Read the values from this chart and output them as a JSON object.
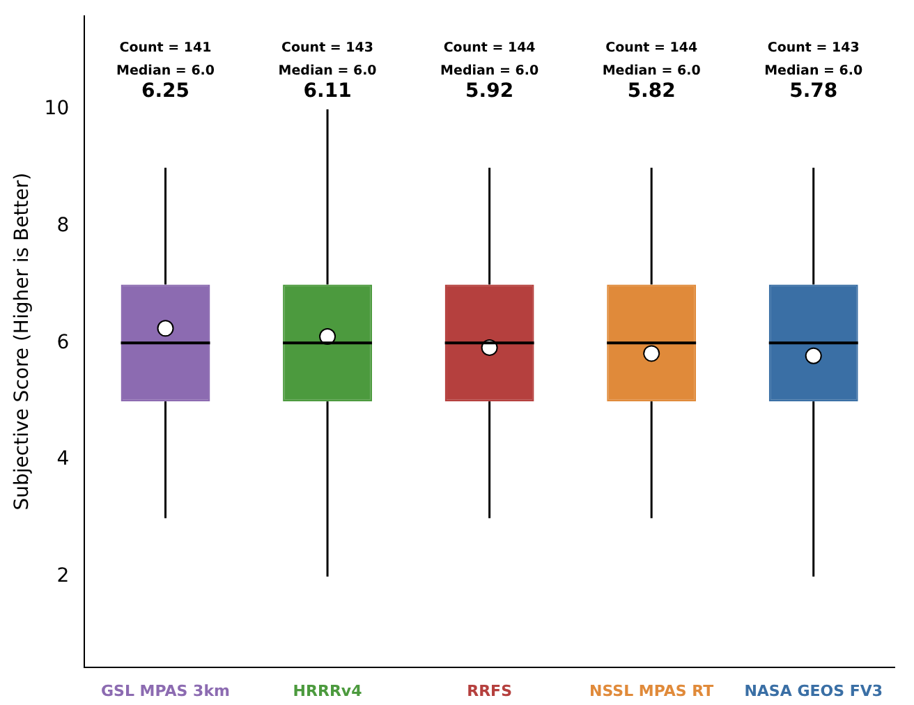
{
  "chart_data": {
    "type": "box",
    "ylabel": "Subjective Score (Higher is Better)",
    "categories": [
      "GSL MPAS 3km",
      "HRRRv4",
      "RRFS",
      "NSSL MPAS RT",
      "NASA GEOS FV3"
    ],
    "colors": [
      "#8c6bb1",
      "#4c9a3e",
      "#b5403e",
      "#e08a3a",
      "#3a6fa5"
    ],
    "boxes": [
      {
        "low": 3,
        "q1": 5,
        "median": 6,
        "q3": 7,
        "high": 9,
        "mean": 6.25
      },
      {
        "low": 2,
        "q1": 5,
        "median": 6,
        "q3": 7,
        "high": 10,
        "mean": 6.11
      },
      {
        "low": 3,
        "q1": 5,
        "median": 6,
        "q3": 7,
        "high": 9,
        "mean": 5.92
      },
      {
        "low": 3,
        "q1": 5,
        "median": 6,
        "q3": 7,
        "high": 9,
        "mean": 5.82
      },
      {
        "low": 2,
        "q1": 5,
        "median": 6,
        "q3": 7,
        "high": 9,
        "mean": 5.78
      }
    ],
    "ylim": [
      0.45,
      11.6
    ],
    "yticks": [
      2,
      4,
      6,
      8,
      10
    ],
    "grid": false,
    "legend": false,
    "annotations": [
      "Count = 141",
      "Median = 6.0",
      "6.25",
      "Count = 143",
      "Median = 6.0",
      "6.11",
      "Count = 144",
      "Median = 6.0",
      "5.92",
      "Count = 144",
      "Median = 6.0",
      "5.82",
      "Count = 143",
      "Median = 6.0",
      "5.78"
    ]
  }
}
